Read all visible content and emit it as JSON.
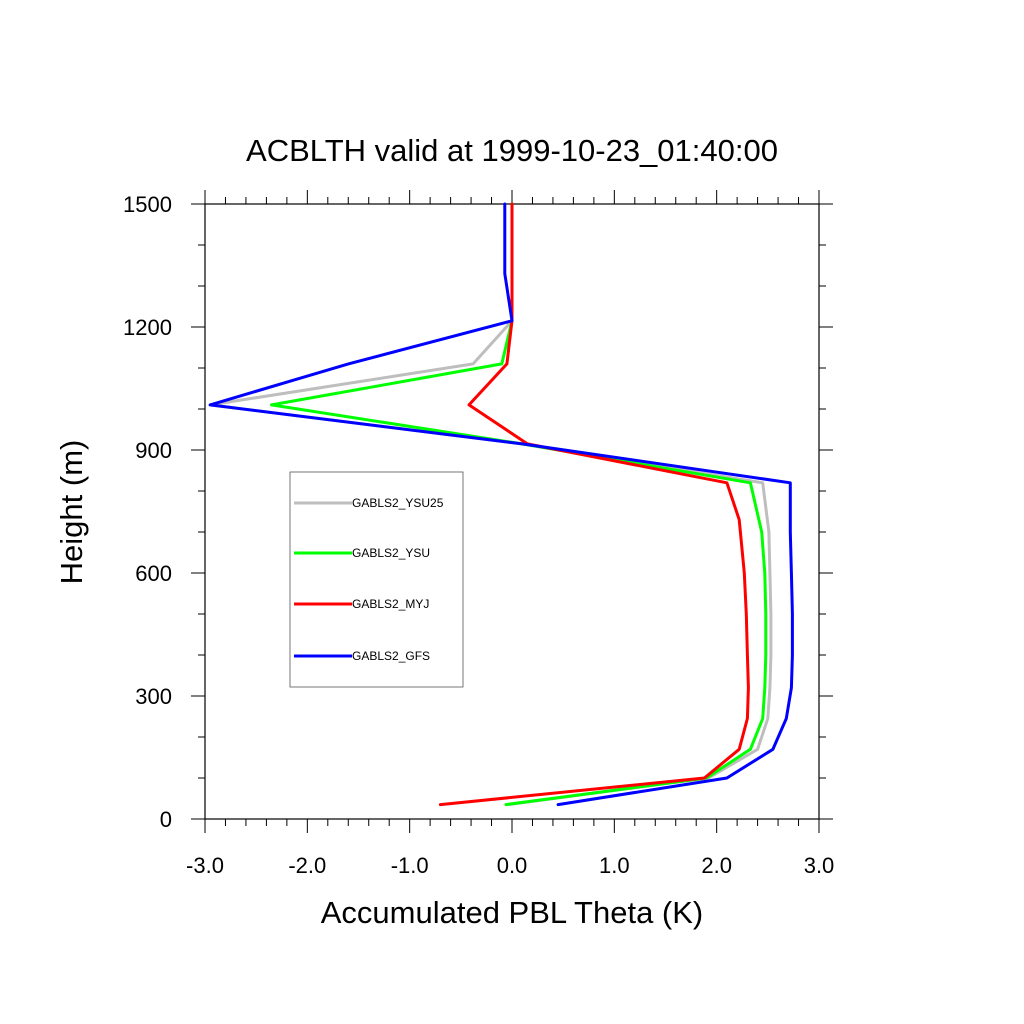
{
  "chart_data": {
    "type": "line",
    "title": "ACBLTH valid at 1999-10-23_01:40:00",
    "xlabel": "Accumulated PBL Theta (K)",
    "ylabel": "Height (m)",
    "xlim": [
      -3.0,
      3.0
    ],
    "ylim": [
      0,
      1500
    ],
    "xticks": [
      -3.0,
      -2.0,
      -1.0,
      0.0,
      1.0,
      2.0,
      3.0
    ],
    "xtick_labels": [
      "-3.0",
      "-2.0",
      "-1.0",
      "0.0",
      "1.0",
      "2.0",
      "3.0"
    ],
    "yticks": [
      0,
      300,
      600,
      900,
      1200,
      1500
    ],
    "ytick_labels": [
      "0",
      "300",
      "600",
      "900",
      "1200",
      "1500"
    ],
    "grid": false,
    "legend_position": "left-middle",
    "series": [
      {
        "name": "GABLS2_YSU25",
        "color": "#bebebe",
        "points": [
          [
            -0.04,
            35
          ],
          [
            1.92,
            100
          ],
          [
            2.4,
            170
          ],
          [
            2.5,
            245
          ],
          [
            2.52,
            320
          ],
          [
            2.53,
            400
          ],
          [
            2.53,
            500
          ],
          [
            2.52,
            600
          ],
          [
            2.51,
            700
          ],
          [
            2.45,
            820
          ],
          [
            0.1,
            915
          ],
          [
            -2.95,
            1010
          ],
          [
            -0.38,
            1110
          ],
          [
            0.0,
            1215
          ],
          [
            0.0,
            1500
          ]
        ]
      },
      {
        "name": "GABLS2_YSU",
        "color": "#00ff00",
        "points": [
          [
            -0.06,
            35
          ],
          [
            1.9,
            100
          ],
          [
            2.33,
            170
          ],
          [
            2.45,
            245
          ],
          [
            2.47,
            320
          ],
          [
            2.48,
            400
          ],
          [
            2.48,
            500
          ],
          [
            2.47,
            600
          ],
          [
            2.44,
            700
          ],
          [
            2.33,
            820
          ],
          [
            0.1,
            915
          ],
          [
            -2.35,
            1010
          ],
          [
            -0.1,
            1110
          ],
          [
            0.0,
            1215
          ],
          [
            0.0,
            1500
          ]
        ]
      },
      {
        "name": "GABLS2_MYJ",
        "color": "#ff0000",
        "points": [
          [
            -0.7,
            35
          ],
          [
            1.88,
            100
          ],
          [
            2.22,
            170
          ],
          [
            2.3,
            245
          ],
          [
            2.31,
            320
          ],
          [
            2.3,
            400
          ],
          [
            2.29,
            500
          ],
          [
            2.27,
            600
          ],
          [
            2.22,
            730
          ],
          [
            2.1,
            820
          ],
          [
            0.15,
            915
          ],
          [
            -0.42,
            1010
          ],
          [
            -0.05,
            1110
          ],
          [
            0.0,
            1215
          ],
          [
            0.0,
            1500
          ]
        ]
      },
      {
        "name": "GABLS2_GFS",
        "color": "#0000ff",
        "points": [
          [
            0.45,
            35
          ],
          [
            2.1,
            100
          ],
          [
            2.55,
            170
          ],
          [
            2.68,
            245
          ],
          [
            2.73,
            320
          ],
          [
            2.74,
            400
          ],
          [
            2.74,
            500
          ],
          [
            2.73,
            600
          ],
          [
            2.72,
            700
          ],
          [
            2.72,
            820
          ],
          [
            0.1,
            915
          ],
          [
            -2.95,
            1010
          ],
          [
            -1.6,
            1110
          ],
          [
            0.0,
            1215
          ],
          [
            -0.07,
            1330
          ],
          [
            -0.07,
            1500
          ]
        ]
      }
    ]
  }
}
